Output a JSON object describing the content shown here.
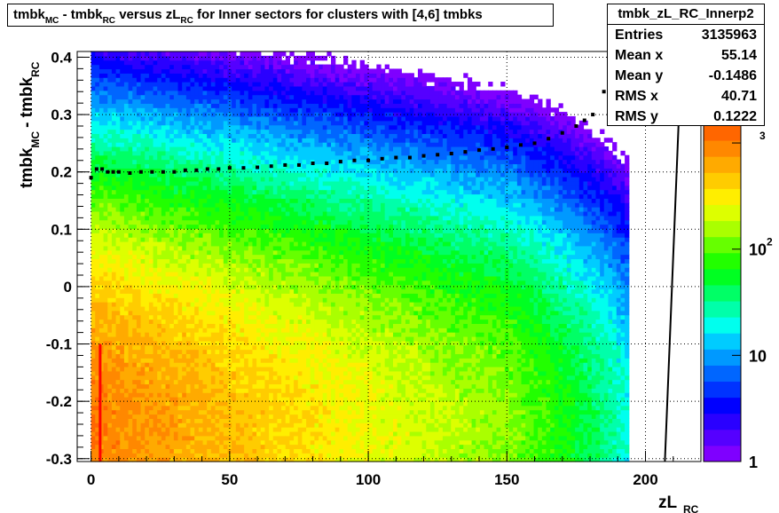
{
  "title": {
    "parts": [
      {
        "text": "tmbk",
        "sub": "MC"
      },
      {
        "text": "- tmbk",
        "sub": "RC"
      },
      {
        "text": "versus zL",
        "sub": "RC"
      },
      {
        "text": "for Inner sectors for clusters with [4,6] tmbks",
        "sub": ""
      }
    ]
  },
  "stats": {
    "name": "tmbk_zL_RC_Innerp2",
    "rows": [
      {
        "label": "Entries",
        "value": "3135963"
      },
      {
        "label": "Mean x",
        "value": "55.14"
      },
      {
        "label": "Mean y",
        "value": "-0.1486"
      },
      {
        "label": "RMS x",
        "value": "40.71"
      },
      {
        "label": "RMS y",
        "value": "0.1222"
      }
    ]
  },
  "chart_data": {
    "type": "heatmap",
    "xlabel": "zL",
    "xlabel_sub": "RC",
    "ylabel": "tmbk",
    "ylabel_sub1": "MC",
    "ylabel_mid": "- tmbk",
    "ylabel_sub2": "RC",
    "xlim": [
      -5,
      220
    ],
    "ylim": [
      -0.305,
      0.41
    ],
    "x_ticks": [
      0,
      50,
      100,
      150,
      200
    ],
    "x_tick_labels": [
      "0",
      "50",
      "100",
      "150",
      "200"
    ],
    "y_ticks": [
      -0.3,
      -0.2,
      -0.1,
      0,
      0.1,
      0.2,
      0.3,
      0.4
    ],
    "y_tick_labels": [
      "-0.3",
      "-0.2",
      "-0.1",
      "0",
      "0.1",
      "0.2",
      "0.3",
      "0.4"
    ],
    "grid": true,
    "colorbar": {
      "scale": "log",
      "tick_labels": [
        "1",
        "10",
        "10",
        "2",
        "3"
      ],
      "ticks": [
        {
          "value": 1,
          "label": "1"
        },
        {
          "value": 10,
          "label": "10"
        },
        {
          "value": 100,
          "label": "10",
          "exp": "2"
        },
        {
          "value": 1000,
          "label": "",
          "exp": "3"
        }
      ],
      "max": 1500
    },
    "colors": [
      "#7f00ff",
      "#5500ff",
      "#2a00ff",
      "#0000ff",
      "#0033ff",
      "#0066ff",
      "#0099ff",
      "#00ccff",
      "#00ffee",
      "#00ffaa",
      "#00ff66",
      "#00ff22",
      "#22ff00",
      "#66ff00",
      "#aaff00",
      "#ddff00",
      "#ffee00",
      "#ffcc00",
      "#ffaa00",
      "#ff8800",
      "#ff6600"
    ],
    "profile_points": [
      {
        "x": 0,
        "y": 0.19
      },
      {
        "x": 2,
        "y": 0.205
      },
      {
        "x": 4,
        "y": 0.205
      },
      {
        "x": 6,
        "y": 0.2
      },
      {
        "x": 8,
        "y": 0.2
      },
      {
        "x": 10,
        "y": 0.2
      },
      {
        "x": 14,
        "y": 0.198
      },
      {
        "x": 18,
        "y": 0.2
      },
      {
        "x": 22,
        "y": 0.2
      },
      {
        "x": 26,
        "y": 0.2
      },
      {
        "x": 30,
        "y": 0.2
      },
      {
        "x": 34,
        "y": 0.203
      },
      {
        "x": 38,
        "y": 0.203
      },
      {
        "x": 42,
        "y": 0.205
      },
      {
        "x": 46,
        "y": 0.205
      },
      {
        "x": 50,
        "y": 0.207
      },
      {
        "x": 55,
        "y": 0.207
      },
      {
        "x": 60,
        "y": 0.208
      },
      {
        "x": 65,
        "y": 0.21
      },
      {
        "x": 70,
        "y": 0.212
      },
      {
        "x": 75,
        "y": 0.212
      },
      {
        "x": 80,
        "y": 0.215
      },
      {
        "x": 85,
        "y": 0.215
      },
      {
        "x": 90,
        "y": 0.218
      },
      {
        "x": 95,
        "y": 0.22
      },
      {
        "x": 100,
        "y": 0.22
      },
      {
        "x": 105,
        "y": 0.223
      },
      {
        "x": 110,
        "y": 0.225
      },
      {
        "x": 115,
        "y": 0.225
      },
      {
        "x": 120,
        "y": 0.228
      },
      {
        "x": 125,
        "y": 0.23
      },
      {
        "x": 130,
        "y": 0.232
      },
      {
        "x": 135,
        "y": 0.235
      },
      {
        "x": 140,
        "y": 0.238
      },
      {
        "x": 145,
        "y": 0.24
      },
      {
        "x": 150,
        "y": 0.243
      },
      {
        "x": 155,
        "y": 0.247
      },
      {
        "x": 160,
        "y": 0.25
      },
      {
        "x": 165,
        "y": 0.258
      },
      {
        "x": 170,
        "y": 0.268
      },
      {
        "x": 175,
        "y": 0.28
      },
      {
        "x": 178,
        "y": 0.29
      },
      {
        "x": 181,
        "y": 0.3
      },
      {
        "x": 185,
        "y": 0.34
      }
    ]
  }
}
